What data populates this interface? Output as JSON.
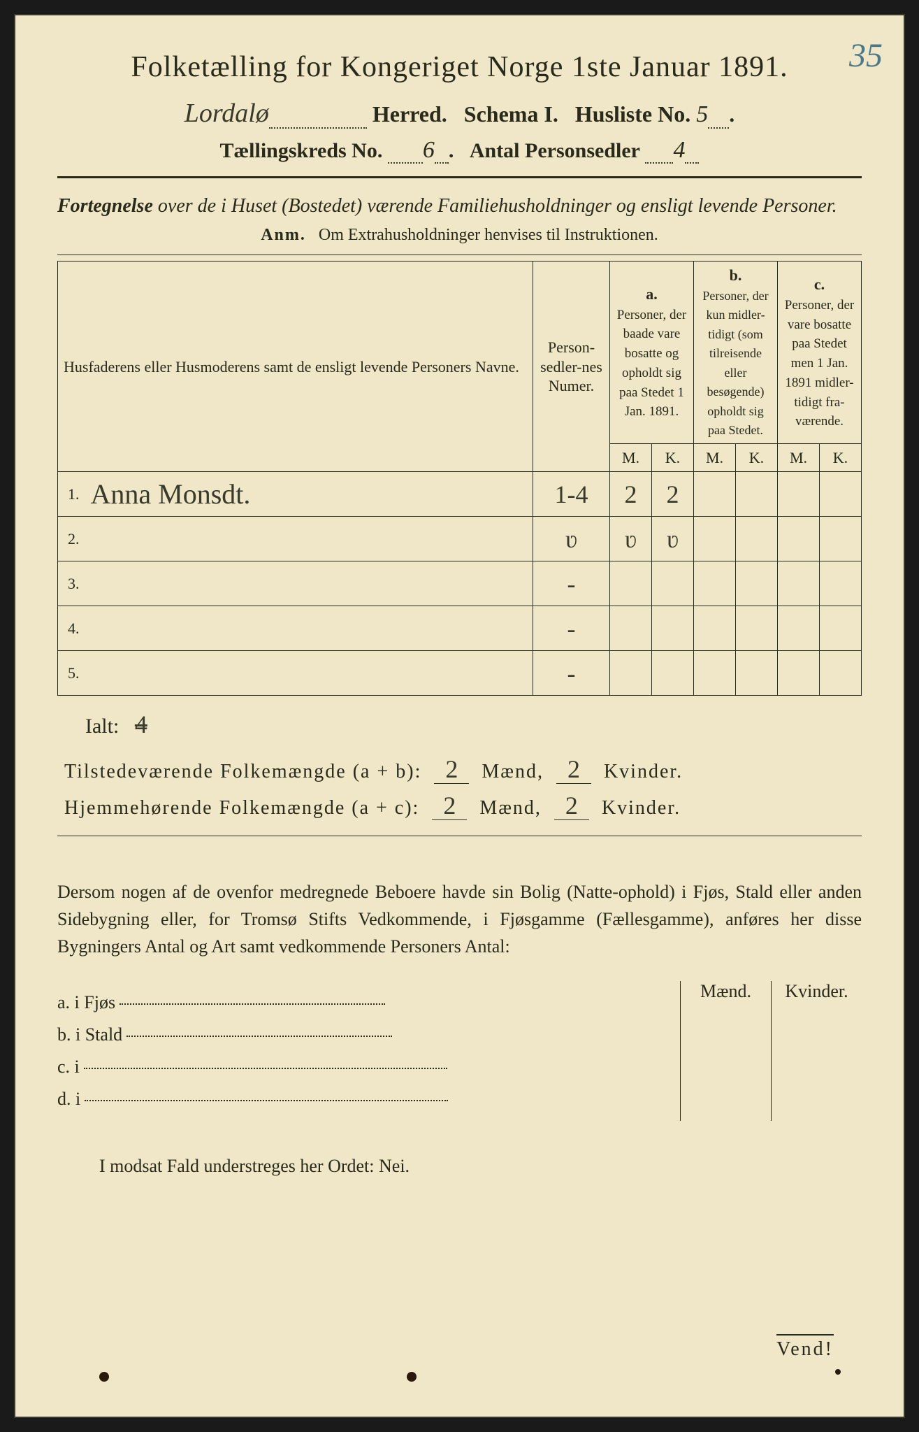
{
  "corner_number": "35",
  "header": {
    "title": "Folketælling for Kongeriget Norge 1ste Januar 1891.",
    "herred_value": "Lordalø",
    "herred_label": "Herred.",
    "schema_label": "Schema I.",
    "husliste_label": "Husliste No.",
    "husliste_value": "5",
    "kreds_label": "Tællingskreds No.",
    "kreds_value": "6",
    "personsedler_label": "Antal Personsedler",
    "personsedler_value": "4"
  },
  "fortegnelse": {
    "lead": "Fortegnelse",
    "rest": " over de i Huset (Bostedet) værende Familiehusholdninger og ensligt levende Personer.",
    "anm_label": "Anm.",
    "anm_text": "Om Extrahusholdninger henvises til Instruktionen."
  },
  "table": {
    "col_names": "Husfaderens eller Husmoderens samt de ensligt levende Personers Navne.",
    "col_numer": "Person-sedler-nes Numer.",
    "col_a_label": "a.",
    "col_a_text": "Personer, der baade vare bosatte og opholdt sig paa Stedet 1 Jan. 1891.",
    "col_b_label": "b.",
    "col_b_text": "Personer, der kun midler-tidigt (som tilreisende eller besøgende) opholdt sig paa Stedet.",
    "col_c_label": "c.",
    "col_c_text": "Personer, der vare bosatte paa Stedet men 1 Jan. 1891 midler-tidigt fra-værende.",
    "mk_m": "M.",
    "mk_k": "K.",
    "rows": [
      {
        "n": "1.",
        "name": "Anna Monsdt.",
        "num": "1-4",
        "aM": "2",
        "aK": "2",
        "bM": "",
        "bK": "",
        "cM": "",
        "cK": ""
      },
      {
        "n": "2.",
        "name": "",
        "num": "ʋ",
        "aM": "ʋ",
        "aK": "ʋ",
        "bM": "",
        "bK": "",
        "cM": "",
        "cK": ""
      },
      {
        "n": "3.",
        "name": "",
        "num": "-",
        "aM": "",
        "aK": "",
        "bM": "",
        "bK": "",
        "cM": "",
        "cK": ""
      },
      {
        "n": "4.",
        "name": "",
        "num": "-",
        "aM": "",
        "aK": "",
        "bM": "",
        "bK": "",
        "cM": "",
        "cK": ""
      },
      {
        "n": "5.",
        "name": "",
        "num": "-",
        "aM": "",
        "aK": "",
        "bM": "",
        "bK": "",
        "cM": "",
        "cK": ""
      }
    ]
  },
  "totals": {
    "ialt_label": "Ialt:",
    "ialt_value": "4",
    "tilstede_label": "Tilstedeværende Folkemængde (a + b):",
    "tilstede_m": "2",
    "tilstede_k": "2",
    "hjemme_label": "Hjemmehørende Folkemængde (a + c):",
    "hjemme_m": "2",
    "hjemme_k": "2",
    "maend": "Mænd,",
    "kvinder": "Kvinder."
  },
  "dersom": "Dersom nogen af de ovenfor medregnede Beboere havde sin Bolig (Natte-ophold) i Fjøs, Stald eller anden Sidebygning eller, for Tromsø Stifts Vedkommende, i Fjøsgamme (Fællesgamme), anføres her disse Bygningers Antal og Art samt vedkommende Personers Antal:",
  "buildings": {
    "maend": "Mænd.",
    "kvinder": "Kvinder.",
    "a": "a.  i      Fjøs",
    "b": "b.  i      Stald",
    "c": "c.  i",
    "d": "d.  i"
  },
  "modsat": "I modsat Fald understreges her Ordet: Nei.",
  "vend": "Vend!",
  "colors": {
    "paper": "#f0e6c8",
    "ink": "#2a2a1a",
    "pencil": "#4a7a8a"
  }
}
